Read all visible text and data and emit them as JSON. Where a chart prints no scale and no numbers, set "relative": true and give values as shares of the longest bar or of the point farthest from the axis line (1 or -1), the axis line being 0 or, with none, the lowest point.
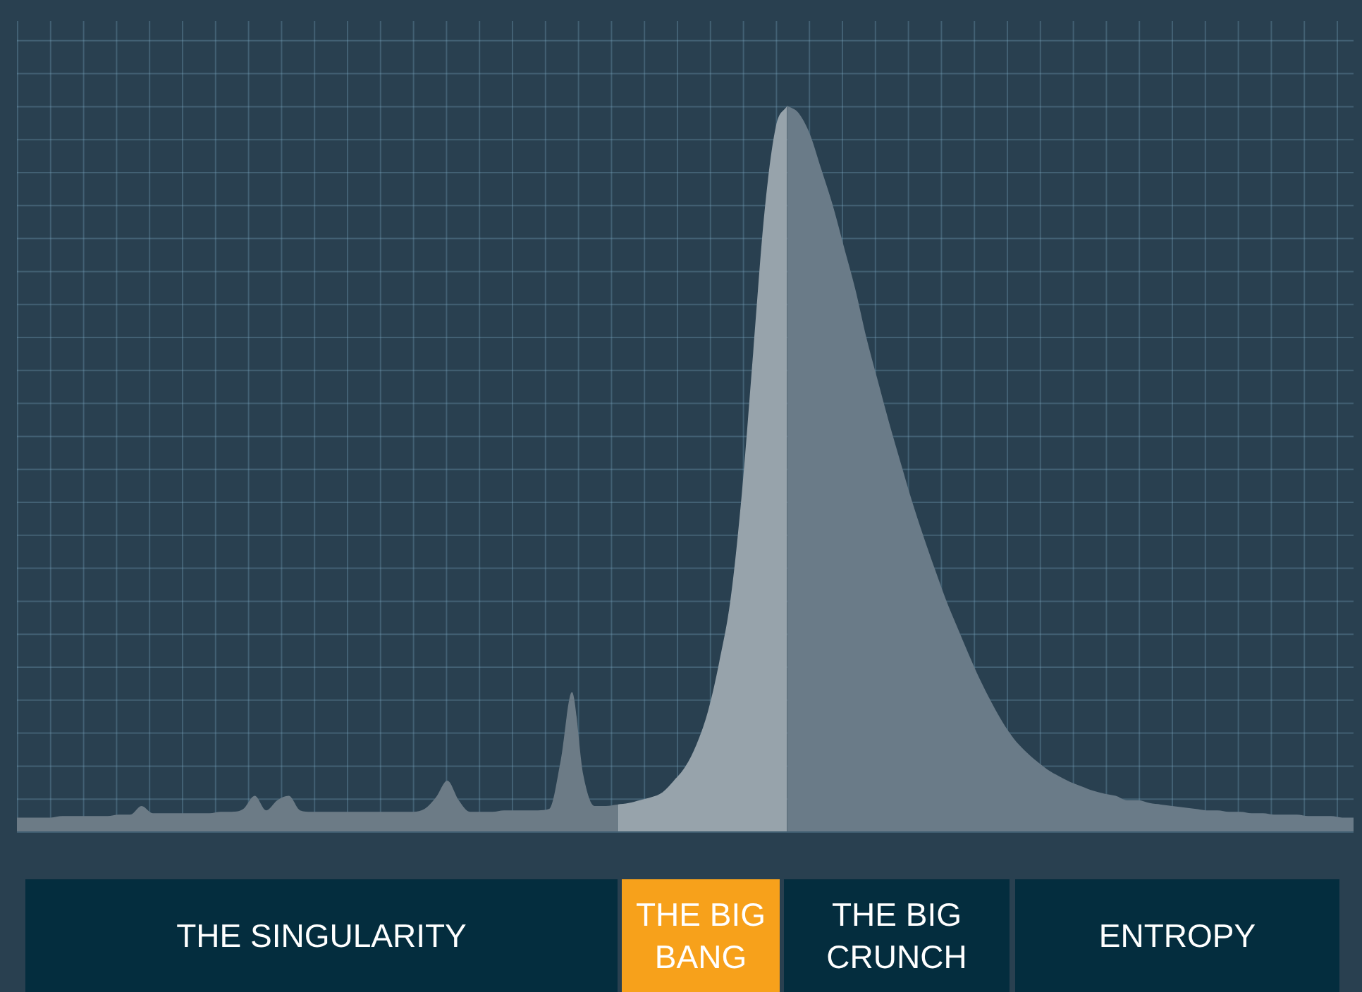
{
  "chart_data": {
    "type": "area",
    "relative": true,
    "grid": true,
    "annotations": [
      "THE SINGULARITY",
      "THE BIG BANG",
      "THE BIG CRUNCH",
      "ENTROPY"
    ],
    "categories": [
      null,
      null,
      null,
      null,
      null,
      null,
      null,
      null,
      null,
      null,
      null,
      null,
      null,
      null,
      null,
      null,
      null,
      null,
      null,
      null,
      null,
      null,
      null,
      null,
      null,
      null,
      null,
      null,
      null,
      null,
      null,
      null,
      null,
      null,
      null,
      null,
      null,
      null,
      null,
      null,
      null,
      null,
      null,
      null,
      null,
      null,
      null,
      null,
      null,
      null,
      null,
      null,
      null,
      null,
      null,
      null,
      null,
      null,
      null,
      null,
      null,
      null,
      null,
      null,
      null,
      null,
      null,
      null,
      null,
      null,
      null,
      null,
      null,
      null,
      null,
      null,
      null,
      null,
      null,
      null,
      null,
      null,
      null,
      null,
      null,
      null,
      null,
      null,
      null,
      null,
      null,
      null,
      null,
      null,
      null,
      null,
      null,
      null,
      null,
      null,
      null,
      null,
      null,
      null,
      null,
      null,
      null,
      null,
      null,
      null,
      null,
      null,
      null,
      null,
      null,
      null,
      null,
      null,
      null
    ],
    "series": [
      {
        "color": "#6c7b86",
        "values": [
          0.019,
          0.019,
          0.019,
          0.019,
          0.021,
          0.021,
          0.021,
          0.021,
          0.021,
          0.023,
          0.023,
          0.035,
          0.025,
          0.025,
          0.025,
          0.025,
          0.025,
          0.025,
          0.027,
          0.027,
          0.031,
          0.049,
          0.029,
          0.043,
          0.049,
          0.029,
          0.027,
          0.027,
          0.027,
          0.027,
          0.027,
          0.027,
          0.027,
          0.027,
          0.027,
          0.027,
          0.031,
          0.047,
          0.07,
          0.043,
          0.027,
          0.027,
          0.027,
          0.029,
          0.029,
          0.029,
          0.029,
          0.031,
          0.097,
          0.192,
          0.078,
          0.035,
          0.035,
          0.037,
          null,
          null,
          null,
          null,
          null,
          null,
          null,
          null,
          null,
          null,
          null,
          null,
          null,
          null,
          null,
          null,
          null,
          null,
          null,
          null,
          null,
          null,
          null,
          null,
          null,
          null,
          null,
          null,
          null,
          null,
          null,
          null,
          null,
          null,
          null,
          null,
          null,
          null,
          null,
          null,
          null,
          null,
          null,
          null,
          null,
          null,
          null,
          null,
          null,
          null,
          null,
          null,
          null,
          null,
          null,
          null,
          null,
          null,
          null,
          null,
          null,
          null,
          null,
          null,
          null
        ]
      },
      {
        "color": "#97a3ab",
        "values": [
          null,
          null,
          null,
          null,
          null,
          null,
          null,
          null,
          null,
          null,
          null,
          null,
          null,
          null,
          null,
          null,
          null,
          null,
          null,
          null,
          null,
          null,
          null,
          null,
          null,
          null,
          null,
          null,
          null,
          null,
          null,
          null,
          null,
          null,
          null,
          null,
          null,
          null,
          null,
          null,
          null,
          null,
          null,
          null,
          null,
          null,
          null,
          null,
          null,
          null,
          null,
          null,
          null,
          0.037,
          0.039,
          0.043,
          0.047,
          0.054,
          0.07,
          0.089,
          0.12,
          0.165,
          0.233,
          0.32,
          0.466,
          0.66,
          0.854,
          0.971,
          1,
          null,
          null,
          null,
          null,
          null,
          null,
          null,
          null,
          null,
          null,
          null,
          null,
          null,
          null,
          null,
          null,
          null,
          null,
          null,
          null,
          null,
          null,
          null,
          null,
          null,
          null,
          null,
          null,
          null,
          null,
          null,
          null,
          null,
          null,
          null,
          null,
          null,
          null,
          null,
          null,
          null,
          null,
          null,
          null,
          null,
          null,
          null,
          null,
          null,
          null
        ]
      },
      {
        "color": "#6a7b88",
        "values": [
          null,
          null,
          null,
          null,
          null,
          null,
          null,
          null,
          null,
          null,
          null,
          null,
          null,
          null,
          null,
          null,
          null,
          null,
          null,
          null,
          null,
          null,
          null,
          null,
          null,
          null,
          null,
          null,
          null,
          null,
          null,
          null,
          null,
          null,
          null,
          null,
          null,
          null,
          null,
          null,
          null,
          null,
          null,
          null,
          null,
          null,
          null,
          null,
          null,
          null,
          null,
          null,
          null,
          null,
          null,
          null,
          null,
          null,
          null,
          null,
          null,
          null,
          null,
          null,
          null,
          null,
          null,
          null,
          1,
          0.99,
          0.961,
          0.913,
          0.864,
          0.806,
          0.748,
          0.68,
          0.621,
          0.563,
          0.509,
          0.456,
          0.408,
          0.363,
          0.32,
          0.282,
          0.245,
          0.21,
          0.179,
          0.151,
          0.128,
          0.111,
          0.097,
          0.085,
          0.076,
          0.068,
          0.062,
          0.056,
          0.052,
          0.049,
          0.043,
          0.043,
          0.039,
          0.037,
          0.035,
          0.033,
          0.031,
          0.029,
          0.029,
          0.027,
          0.027,
          0.025,
          0.025,
          0.023,
          0.023,
          0.023,
          0.021,
          0.021,
          0.021,
          0.019,
          0.019
        ]
      }
    ]
  }
}
